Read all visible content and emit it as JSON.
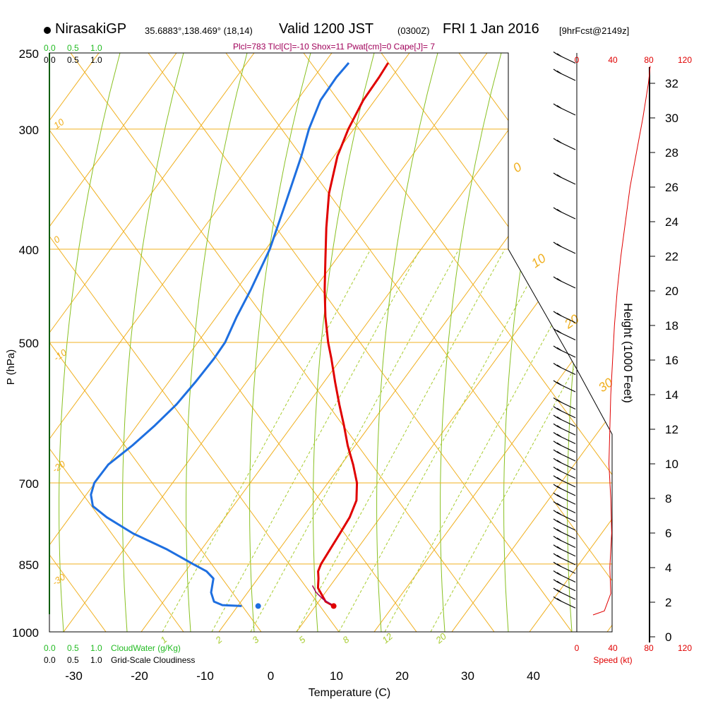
{
  "header": {
    "station": "NirasakiGP",
    "coords": "35.6883°,138.469° (18,14)",
    "valid": "Valid 1200 JST",
    "utc": "(0300Z)",
    "date": "FRI 1 Jan 2016",
    "forecast": "[9hrFcst@2149z]",
    "params": "Plcl=783 Tlcl[C]=-10 Shox=11 Pwat[cm]=0 Cape[J]= 7"
  },
  "chart_data": {
    "type": "line",
    "chart": "Skew-T log-P sounding",
    "ylabel": "P (hPa)",
    "xlabel": "Temperature (C)",
    "right_label": "Height (1000 Feet)",
    "pressure_levels": [
      250,
      300,
      400,
      500,
      700,
      850,
      1000
    ],
    "pressure_tick_labels": [
      "250",
      "300",
      "400",
      "500",
      "700",
      "850",
      "1000"
    ],
    "temperature_ticks": [
      -30,
      -20,
      -10,
      0,
      10,
      20,
      30,
      40
    ],
    "temperature_tick_labels": [
      "-30",
      "-20",
      "-10",
      "0",
      "10",
      "20",
      "30",
      "40"
    ],
    "height_ticks_kft": [
      0,
      2,
      4,
      6,
      8,
      10,
      12,
      14,
      16,
      18,
      20,
      22,
      24,
      26,
      28,
      30,
      32
    ],
    "height_tick_labels": [
      "0",
      "2",
      "4",
      "6",
      "8",
      "10",
      "12",
      "14",
      "16",
      "18",
      "20",
      "22",
      "24",
      "26",
      "28",
      "30",
      "32"
    ],
    "dry_adiabat_labels": [
      "10",
      "0",
      "-10",
      "-20",
      "-30",
      "0",
      "10",
      "20",
      "30"
    ],
    "mixing_ratio_labels": [
      "1",
      "2",
      "3",
      "5",
      "8",
      "12",
      "20"
    ],
    "cloud_scale": [
      "0.0",
      "0.5",
      "1.0"
    ],
    "cloud_water_label": "CloudWater (g/Kg)",
    "cloudiness_label": "Grid-Scale Cloudiness",
    "wind_speed_label": "Speed (kt)",
    "wind_speed_ticks": [
      "0",
      "40",
      "80",
      "120"
    ],
    "series": [
      {
        "name": "Temperature",
        "color": "#e00000",
        "pressure": [
          940,
          930,
          915,
          900,
          880,
          865,
          850,
          820,
          790,
          760,
          730,
          700,
          670,
          640,
          610,
          580,
          550,
          520,
          500,
          470,
          440,
          410,
          380,
          350,
          320,
          300,
          280,
          265,
          256
        ],
        "values": [
          8.0,
          6.5,
          5.5,
          4.5,
          4.0,
          3.5,
          3.5,
          4.0,
          4.5,
          5.0,
          5.0,
          4.0,
          2.3,
          0.3,
          -1.5,
          -3.5,
          -5.5,
          -7.5,
          -9.0,
          -11.0,
          -12.8,
          -14.5,
          -16.3,
          -18.0,
          -19.0,
          -19.0,
          -18.5,
          -17.5,
          -17.0
        ]
      },
      {
        "name": "Dewpoint",
        "color": "#1e6fe0",
        "pressure": [
          940,
          938,
          930,
          910,
          880,
          865,
          850,
          820,
          790,
          760,
          740,
          720,
          700,
          670,
          640,
          610,
          580,
          550,
          520,
          500,
          470,
          440,
          400,
          360,
          320,
          300,
          280,
          265,
          256
        ],
        "values": [
          -6.0,
          -9.0,
          -10.5,
          -11.5,
          -12.0,
          -13.5,
          -16.0,
          -21.0,
          -27.0,
          -32.0,
          -34.8,
          -35.8,
          -36.0,
          -35.0,
          -32.5,
          -30.3,
          -28.3,
          -26.8,
          -25.4,
          -24.7,
          -24.5,
          -24.0,
          -23.6,
          -24.0,
          -24.5,
          -25.0,
          -25.0,
          -24.0,
          -23.0
        ]
      },
      {
        "name": "Surface parcel",
        "color": "#a0005a",
        "pressure": [
          940,
          925,
          910,
          895
        ],
        "values": [
          8.0,
          6.0,
          4.5,
          3.5
        ]
      }
    ],
    "surface_dewpoint_marker": {
      "pressure": 940,
      "value": -3.5
    },
    "wind_speed_profile_kt": {
      "height_kft": [
        1.5,
        2.5,
        4.0,
        6.0,
        8.0,
        10.0,
        12.0,
        14.0,
        16.0,
        18.0,
        20.0,
        22.0,
        24.0,
        26.0,
        28.0,
        30.0,
        32.0,
        33.0
      ],
      "values": [
        30,
        37,
        36,
        38,
        37,
        35,
        36,
        37,
        39,
        41,
        44,
        48,
        53,
        58,
        65,
        72,
        78,
        80
      ]
    },
    "wind_barb_heights_kft": [
      1.5,
      2.0,
      2.5,
      3.0,
      3.5,
      4.0,
      4.5,
      5.0,
      5.5,
      6.0,
      6.5,
      7.0,
      7.5,
      8.0,
      8.5,
      9.0,
      9.5,
      10.0,
      10.5,
      11.0,
      11.5,
      12.0,
      12.5,
      13.0,
      14.0,
      15.0,
      16.0,
      17.0,
      18.0,
      20.0,
      22.0,
      24.0,
      26.0,
      28.0,
      30.0,
      32.0,
      33.0
    ]
  }
}
